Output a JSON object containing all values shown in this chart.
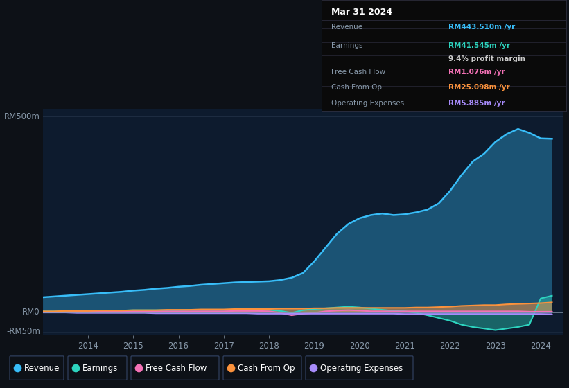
{
  "bg_color": "#0d1117",
  "plot_bg": "#0d1b2e",
  "grid_color": "#1e2d42",
  "text_color": "#8899aa",
  "revenue_color": "#38bdf8",
  "earnings_color": "#2dd4bf",
  "fcf_color": "#f472b6",
  "cashop_color": "#fb923c",
  "opex_color": "#a78bfa",
  "years": [
    2013.0,
    2013.25,
    2013.5,
    2013.75,
    2014.0,
    2014.25,
    2014.5,
    2014.75,
    2015.0,
    2015.25,
    2015.5,
    2015.75,
    2016.0,
    2016.25,
    2016.5,
    2016.75,
    2017.0,
    2017.25,
    2017.5,
    2017.75,
    2018.0,
    2018.25,
    2018.5,
    2018.75,
    2019.0,
    2019.25,
    2019.5,
    2019.75,
    2020.0,
    2020.25,
    2020.5,
    2020.75,
    2021.0,
    2021.25,
    2021.5,
    2021.75,
    2022.0,
    2022.25,
    2022.5,
    2022.75,
    2023.0,
    2023.25,
    2023.5,
    2023.75,
    2024.0,
    2024.25
  ],
  "revenue": [
    38,
    40,
    42,
    44,
    46,
    48,
    50,
    52,
    55,
    57,
    60,
    62,
    65,
    67,
    70,
    72,
    74,
    76,
    77,
    78,
    79,
    82,
    88,
    100,
    130,
    165,
    200,
    225,
    240,
    248,
    252,
    248,
    250,
    255,
    262,
    278,
    310,
    350,
    385,
    405,
    435,
    455,
    468,
    458,
    444,
    443
  ],
  "earnings": [
    2,
    2,
    3,
    3,
    3,
    4,
    4,
    4,
    5,
    5,
    5,
    5,
    5,
    6,
    6,
    6,
    6,
    6,
    6,
    6,
    6,
    3,
    -2,
    5,
    8,
    10,
    12,
    14,
    12,
    9,
    6,
    3,
    2,
    -2,
    -8,
    -15,
    -22,
    -32,
    -38,
    -42,
    -46,
    -42,
    -38,
    -32,
    35,
    42
  ],
  "free_cash_flow": [
    0,
    0,
    0,
    1,
    1,
    1,
    1,
    1,
    2,
    2,
    2,
    2,
    2,
    2,
    2,
    2,
    2,
    3,
    3,
    3,
    2,
    -2,
    -8,
    -4,
    -2,
    2,
    4,
    5,
    4,
    2,
    2,
    2,
    2,
    2,
    2,
    2,
    2,
    2,
    2,
    2,
    2,
    2,
    2,
    1,
    1,
    1
  ],
  "cash_from_op": [
    2,
    2,
    3,
    3,
    3,
    4,
    4,
    4,
    5,
    5,
    5,
    6,
    6,
    6,
    7,
    7,
    7,
    8,
    8,
    8,
    8,
    9,
    9,
    9,
    10,
    10,
    11,
    11,
    11,
    11,
    11,
    11,
    11,
    12,
    12,
    13,
    14,
    16,
    17,
    18,
    18,
    20,
    21,
    22,
    23,
    25
  ],
  "operating_expenses": [
    -1,
    -1,
    -1,
    -2,
    -2,
    -2,
    -2,
    -2,
    -2,
    -2,
    -3,
    -3,
    -3,
    -3,
    -3,
    -3,
    -3,
    -3,
    -3,
    -4,
    -4,
    -4,
    -4,
    -4,
    -4,
    -4,
    -4,
    -4,
    -4,
    -4,
    -4,
    -4,
    -5,
    -5,
    -5,
    -5,
    -5,
    -5,
    -5,
    -5,
    -5,
    -5,
    -5,
    -5,
    -5,
    -6
  ],
  "xticks": [
    2014,
    2015,
    2016,
    2017,
    2018,
    2019,
    2020,
    2021,
    2022,
    2023,
    2024
  ],
  "info_box": {
    "date": "Mar 31 2024",
    "revenue_val": "RM443.510m",
    "earnings_val": "RM41.545m",
    "margin": "9.4%",
    "fcf_val": "RM1.076m",
    "cashop_val": "RM25.098m",
    "opex_val": "RM5.885m"
  }
}
